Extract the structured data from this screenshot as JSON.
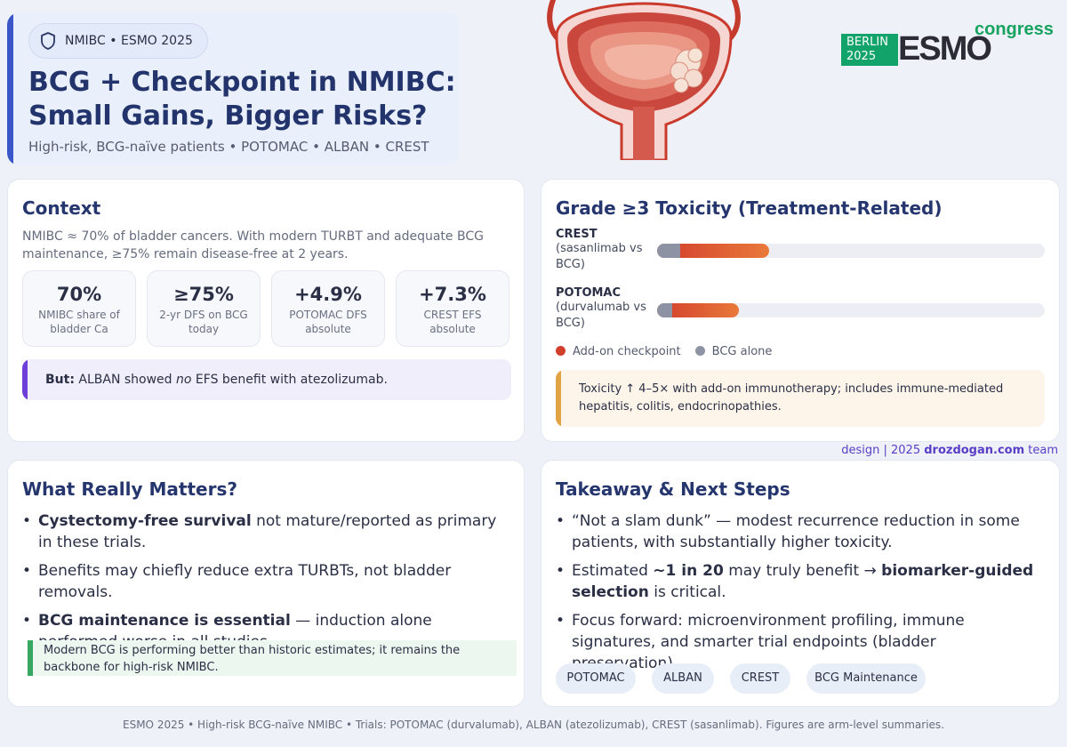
{
  "header": {
    "badge": "NMIBC • ESMO 2025",
    "title_line1": "BCG + Checkpoint in NMIBC:",
    "title_line2": "Small Gains, Bigger Risks?",
    "subtitle": "High-risk, BCG-naïve patients • POTOMAC • ALBAN • CREST"
  },
  "logo": {
    "city": "BERLIN",
    "year": "2025",
    "brand": "ESMO",
    "suffix": "congress"
  },
  "context": {
    "title": "Context",
    "description": "NMIBC ≈ 70% of bladder cancers. With modern TURBT and adequate BCG maintenance, ≥75% remain disease-free at 2 years.",
    "stats": [
      {
        "value": "70%",
        "label_line1": "NMIBC share of",
        "label_line2": "bladder Ca"
      },
      {
        "value": "≥75%",
        "label_line1": "2-yr DFS on BCG",
        "label_line2": "today"
      },
      {
        "value": "+4.9%",
        "label_line1": "POTOMAC DFS",
        "label_line2": "absolute"
      },
      {
        "value": "+7.3%",
        "label_line1": "CREST EFS",
        "label_line2": "absolute"
      }
    ],
    "but_label": "But:",
    "but_pre": " ALBAN showed ",
    "but_em": "no",
    "but_post": " EFS benefit with atezolizumab."
  },
  "toxicity": {
    "title": "Grade ≥3 Toxicity (Treatment-Related)",
    "rows": [
      {
        "name": "CREST",
        "sub_line1": "(sasanlimab vs",
        "sub_line2": "BCG)",
        "addon": 0.29,
        "bcg": 0.06
      },
      {
        "name": "POTOMAC",
        "sub_line1": "(durvalumab vs",
        "sub_line2": "BCG)",
        "addon": 0.21,
        "bcg": 0.04
      }
    ],
    "legend_addon": "Add-on checkpoint",
    "legend_bcg": "BCG alone",
    "note": "Toxicity ↑ 4–5× with add-on immunotherapy; includes immune-mediated hepatitis, colitis, endocrinopathies.",
    "color_addon": "#d23e2c",
    "color_bcg": "#8d93a3"
  },
  "credit": {
    "pre": "design | 2025 ",
    "site": "drozdogan.com",
    "post": " team"
  },
  "matters": {
    "title": "What Really Matters?",
    "b1_bold": "Cystectomy-free survival",
    "b1_rest": " not mature/reported as primary in these trials.",
    "b2": "Benefits may chiefly reduce extra TURBTs, not bladder removals.",
    "b3_bold": "BCG maintenance is essential",
    "b3_rest": " — induction alone performed worse in all studies.",
    "note": "Modern BCG is performing better than historic estimates; it remains the backbone for high-risk NMIBC."
  },
  "takeaway": {
    "title": "Takeaway & Next Steps",
    "b1": "“Not a slam dunk” — modest recurrence reduction in some patients, with substantially higher toxicity.",
    "b2_pre": "Estimated ",
    "b2_bold1": "~1 in 20",
    "b2_mid": " may truly benefit → ",
    "b2_bold2": "biomarker-guided selection",
    "b2_post": " is critical.",
    "b3": "Focus forward: microenvironment profiling, immune signatures, and smarter trial endpoints (bladder preservation).",
    "tags": [
      "POTOMAC",
      "ALBAN",
      "CREST",
      "BCG Maintenance"
    ]
  },
  "footer": "ESMO 2025 • High-risk BCG-naïve NMIBC • Trials: POTOMAC (durvalumab), ALBAN (atezolizumab), CREST (sasanlimab). Figures are arm-level summaries."
}
